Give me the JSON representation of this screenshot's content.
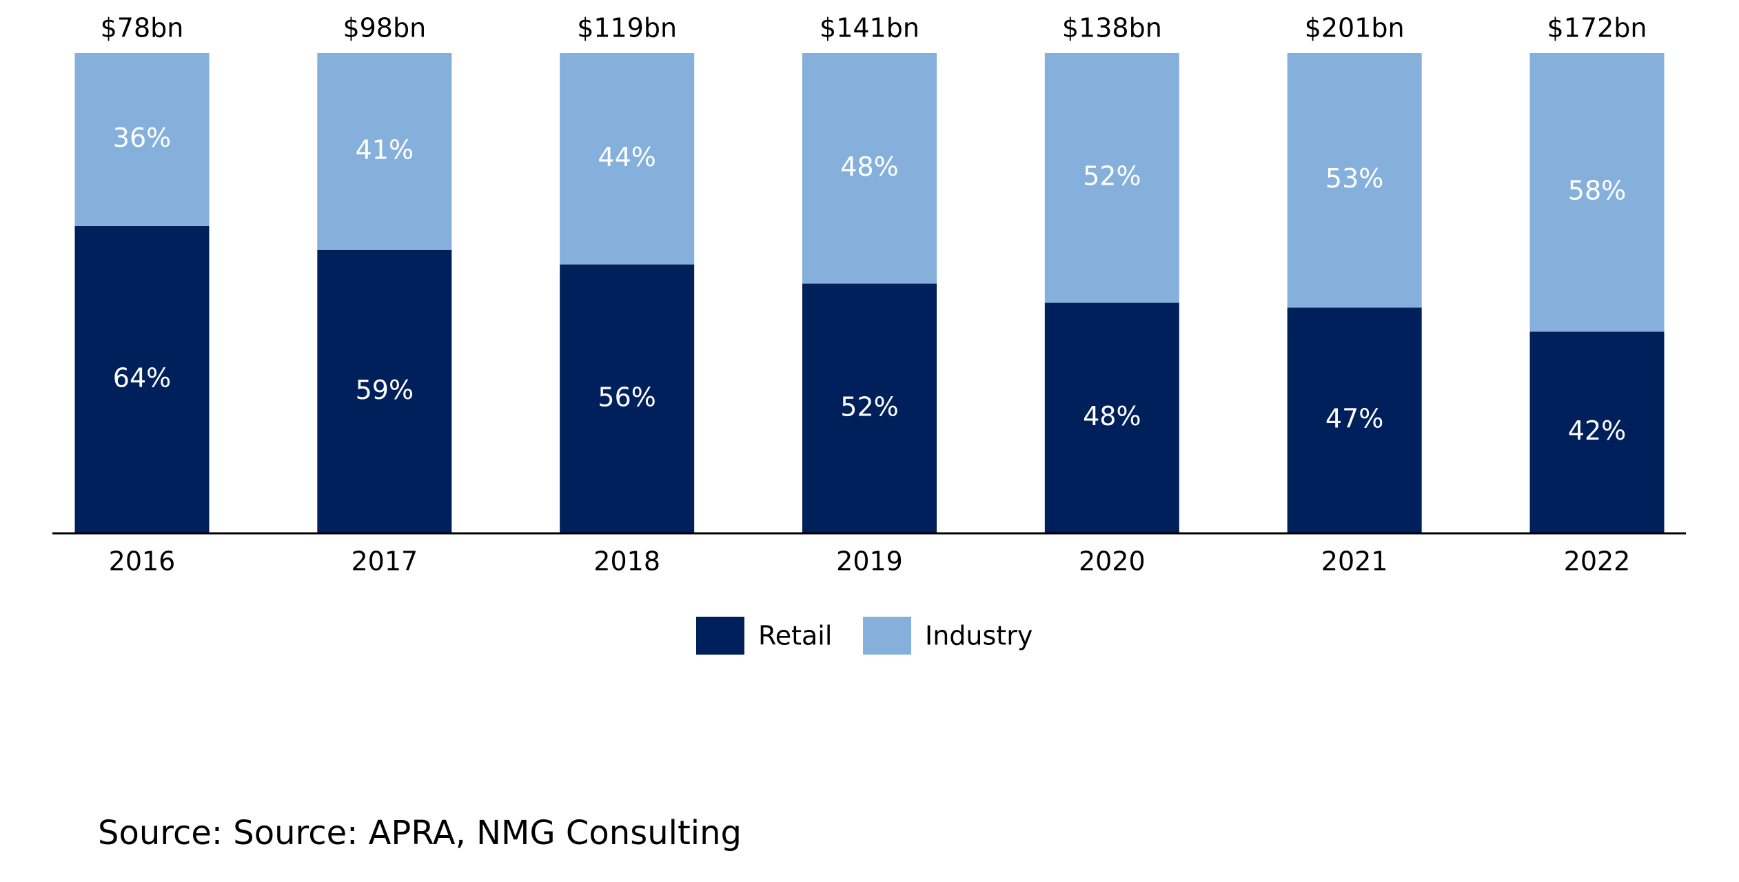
{
  "chart_data": {
    "type": "stacked_bar",
    "categories": [
      "2016",
      "2017",
      "2018",
      "2019",
      "2020",
      "2021",
      "2022"
    ],
    "series": [
      {
        "name": "Retail",
        "color": "#00205b",
        "values": [
          64,
          59,
          56,
          52,
          48,
          47,
          42
        ],
        "value_labels": [
          "64%",
          "59%",
          "56%",
          "52%",
          "48%",
          "47%",
          "42%"
        ]
      },
      {
        "name": "Industry",
        "color": "#84b0db",
        "values": [
          36,
          41,
          44,
          48,
          52,
          53,
          58
        ],
        "value_labels": [
          "36%",
          "41%",
          "44%",
          "48%",
          "52%",
          "53%",
          "58%"
        ]
      }
    ],
    "totals": {
      "values": [
        78,
        98,
        119,
        141,
        138,
        201,
        172
      ],
      "value_labels": [
        "$78bn",
        "$98bn",
        "$119bn",
        "$141bn",
        "$138bn",
        "$201bn",
        "$172bn"
      ]
    },
    "source": "Source: Source: APRA, NMG Consulting"
  }
}
